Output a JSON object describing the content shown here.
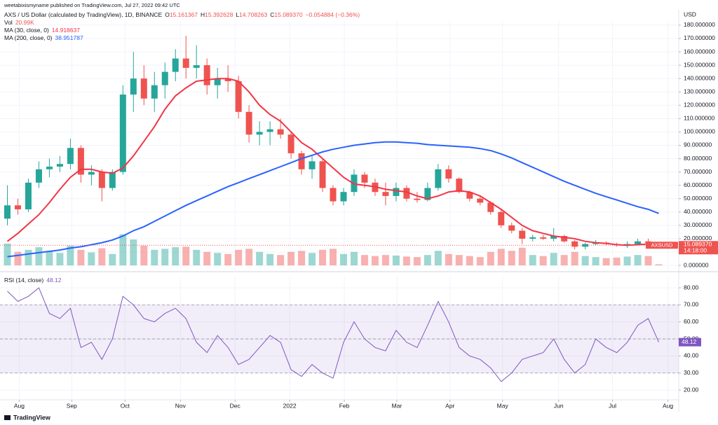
{
  "header": {
    "publisher": "weetabixismyname published on TradingView.com, Jul 27, 2022 09:42 UTC"
  },
  "footer": {
    "brand": "TradingView"
  },
  "chart_data": [
    {
      "type": "candlestick",
      "title": "AXS / US Dollar (calculated by TradingView), 1D, BINANCE",
      "ohlc_legend": [
        {
          "label": "O",
          "value": "15.161367"
        },
        {
          "label": "H",
          "value": "15.392628"
        },
        {
          "label": "L",
          "value": "14.708263"
        },
        {
          "label": "C",
          "value": "15.089370"
        }
      ],
      "change_label": "−0.054884 (−0.36%)",
      "up_color": "#26a69a",
      "down_color": "#ef5350",
      "open": [
        35,
        45,
        42,
        62,
        72,
        74,
        76,
        88,
        68,
        70,
        58,
        70,
        128,
        140,
        125,
        135,
        145,
        155,
        148,
        150,
        135,
        140,
        138,
        115,
        98,
        100,
        102,
        98,
        84,
        72,
        78,
        58,
        48,
        55,
        68,
        62,
        55,
        52,
        58,
        50,
        49,
        58,
        72,
        65,
        55,
        50,
        47,
        40,
        30,
        26,
        20,
        21,
        20,
        22,
        18,
        14,
        16,
        17,
        16,
        15,
        16,
        18,
        15.161367
      ],
      "high": [
        60,
        50,
        65,
        78,
        80,
        82,
        95,
        90,
        75,
        72,
        72,
        135,
        160,
        150,
        145,
        152,
        162,
        172,
        165,
        155,
        148,
        150,
        142,
        120,
        108,
        108,
        110,
        100,
        86,
        82,
        80,
        60,
        58,
        72,
        70,
        65,
        62,
        62,
        60,
        55,
        62,
        76,
        75,
        66,
        56,
        52,
        48,
        42,
        32,
        28,
        23,
        23,
        28,
        23,
        19,
        17,
        19,
        18,
        17,
        18,
        20,
        20,
        15.392628
      ],
      "low": [
        30,
        38,
        40,
        58,
        66,
        70,
        72,
        62,
        60,
        48,
        56,
        68,
        115,
        120,
        115,
        125,
        138,
        140,
        140,
        128,
        125,
        130,
        110,
        92,
        90,
        90,
        95,
        80,
        68,
        65,
        55,
        45,
        45,
        52,
        58,
        52,
        45,
        48,
        48,
        47,
        48,
        56,
        62,
        54,
        48,
        45,
        38,
        28,
        24,
        16,
        18,
        19,
        18,
        17,
        12,
        12,
        15,
        15,
        14,
        13,
        15,
        15,
        14.708263
      ],
      "close": [
        45,
        42,
        62,
        72,
        74,
        76,
        88,
        68,
        70,
        58,
        70,
        128,
        140,
        125,
        135,
        145,
        155,
        148,
        150,
        135,
        140,
        138,
        115,
        98,
        100,
        102,
        98,
        84,
        72,
        78,
        58,
        48,
        55,
        68,
        62,
        55,
        52,
        58,
        50,
        49,
        58,
        72,
        65,
        55,
        50,
        47,
        40,
        30,
        26,
        20,
        21,
        20,
        22,
        18,
        14,
        16,
        17,
        16,
        15,
        16,
        18,
        17,
        15.08937
      ],
      "volume": {
        "name": "Vol",
        "value_label": "20.99K",
        "ylim": [
          0,
          1500
        ],
        "values": [
          420,
          260,
          300,
          350,
          280,
          240,
          380,
          300,
          250,
          330,
          220,
          600,
          500,
          380,
          300,
          320,
          350,
          360,
          300,
          260,
          240,
          220,
          300,
          320,
          260,
          220,
          200,
          260,
          280,
          240,
          300,
          320,
          220,
          260,
          200,
          180,
          200,
          190,
          170,
          160,
          200,
          280,
          220,
          200,
          180,
          160,
          260,
          320,
          280,
          340,
          200,
          180,
          240,
          200,
          260,
          180,
          160,
          140,
          150,
          170,
          200,
          180,
          20.99
        ]
      },
      "series": [
        {
          "name": "MA (30, close, 0)",
          "value_label": "14.918637",
          "color": "#f23645",
          "values": [
            18,
            24,
            31,
            38,
            47,
            57,
            66,
            72,
            72,
            70,
            69,
            73,
            82,
            93,
            104,
            117,
            127,
            133,
            138,
            139,
            140,
            140,
            138,
            130,
            120,
            113,
            108,
            100,
            92,
            87,
            80,
            73,
            66,
            61,
            60,
            59,
            57,
            56,
            55,
            52,
            50,
            52,
            55,
            56,
            55,
            52,
            47,
            42,
            36,
            30,
            26,
            24,
            22,
            21,
            20,
            18,
            17,
            16.5,
            15.5,
            15,
            15.5,
            16,
            14.918637
          ]
        },
        {
          "name": "MA (200, close, 0)",
          "value_label": "38.951787",
          "color": "#2962ff",
          "values": [
            6.5,
            7.5,
            8.5,
            9.5,
            10.5,
            11.5,
            13,
            14,
            15.5,
            17,
            19,
            22,
            26,
            29,
            33,
            37,
            41,
            45,
            48.5,
            52,
            55.5,
            59,
            62,
            65,
            68,
            71,
            74,
            77,
            80,
            82.5,
            85,
            87,
            88.5,
            90,
            91,
            92,
            92.5,
            92.5,
            92,
            91.5,
            90.5,
            90,
            89.5,
            89,
            88.5,
            87.5,
            86,
            83.5,
            80.5,
            77,
            73.5,
            70,
            66.5,
            63,
            60,
            57,
            54,
            51.5,
            49,
            46.5,
            44,
            42,
            38.951787
          ]
        }
      ],
      "y_unit": "USD",
      "ylim": [
        -4.7,
        183.1
      ],
      "yticks": [
        {
          "value": 0,
          "label": "0.000000"
        },
        {
          "value": 10,
          "label": "10.000000"
        },
        {
          "value": 20,
          "label": "20.000000"
        },
        {
          "value": 30,
          "label": "30.000000"
        },
        {
          "value": 40,
          "label": "40.000000"
        },
        {
          "value": 50,
          "label": "50.000000"
        },
        {
          "value": 60,
          "label": "60.000000"
        },
        {
          "value": 70,
          "label": "70.000000"
        },
        {
          "value": 80,
          "label": "80.000000"
        },
        {
          "value": 90,
          "label": "90.000000"
        },
        {
          "value": 100,
          "label": "100.000000"
        },
        {
          "value": 110,
          "label": "110.000000"
        },
        {
          "value": 120,
          "label": "120.000000"
        },
        {
          "value": 130,
          "label": "130.000000"
        },
        {
          "value": 140,
          "label": "140.000000"
        },
        {
          "value": 150,
          "label": "150.000000"
        },
        {
          "value": 160,
          "label": "160.000000"
        },
        {
          "value": 170,
          "label": "170.000000"
        },
        {
          "value": 180,
          "label": "180.000000"
        }
      ],
      "xlim": [
        -0.7,
        63.9
      ],
      "last_price": {
        "symbol": "AXSUSD",
        "label": "15.089370",
        "countdown": "14:18:00"
      },
      "grid": true
    },
    {
      "type": "line",
      "title": "RSI (14, close)",
      "series": [
        {
          "value_label": "48.12",
          "color": "#7e57c2",
          "values": [
            78,
            72,
            75,
            80,
            65,
            62,
            68,
            45,
            48,
            38,
            50,
            75,
            70,
            62,
            60,
            65,
            68,
            62,
            48,
            42,
            52,
            45,
            35,
            38,
            45,
            52,
            48,
            32,
            28,
            35,
            30,
            27,
            48,
            60,
            50,
            45,
            43,
            55,
            48,
            45,
            58,
            72,
            60,
            45,
            40,
            38,
            33,
            25,
            30,
            38,
            40,
            42,
            50,
            38,
            30,
            35,
            50,
            45,
            42,
            48,
            58,
            62,
            48.12
          ]
        }
      ],
      "band": [
        30,
        70
      ],
      "midline": 50,
      "band_color": "rgba(126,87,194,0.1)",
      "ylim": [
        14.7,
        86.6
      ],
      "yticks": [
        {
          "value": 20,
          "label": "20.00"
        },
        {
          "value": 30,
          "label": "30.00"
        },
        {
          "value": 40,
          "label": "40.00"
        },
        {
          "value": 50,
          "label": "50.00"
        },
        {
          "value": 60,
          "label": "60.00"
        },
        {
          "value": 70,
          "label": "70.00"
        },
        {
          "value": 80,
          "label": "80.00"
        }
      ],
      "xlim": [
        -0.7,
        63.9
      ],
      "xticks": [
        {
          "value": 1.13,
          "label": "Aug"
        },
        {
          "value": 6.13,
          "label": "Sep"
        },
        {
          "value": 11.2,
          "label": "Oct"
        },
        {
          "value": 16.47,
          "label": "Nov"
        },
        {
          "value": 21.67,
          "label": "Dec"
        },
        {
          "value": 26.87,
          "label": "2022"
        },
        {
          "value": 32.07,
          "label": "Feb"
        },
        {
          "value": 37.07,
          "label": "Mar"
        },
        {
          "value": 42.13,
          "label": "Apr"
        },
        {
          "value": 47.13,
          "label": "May"
        },
        {
          "value": 52.47,
          "label": "Jun"
        },
        {
          "value": 57.6,
          "label": "Jul"
        },
        {
          "value": 62.87,
          "label": "Aug"
        }
      ],
      "grid": true
    }
  ]
}
